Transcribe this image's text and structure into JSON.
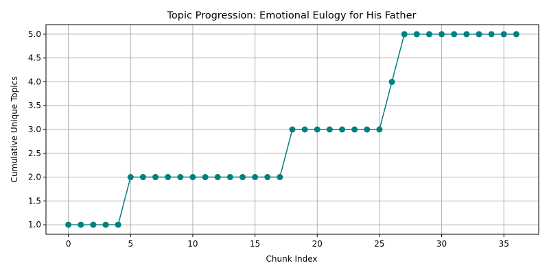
{
  "chart_data": {
    "type": "line",
    "title": "Topic Progression: Emotional Eulogy for His Father",
    "xlabel": "Chunk Index",
    "ylabel": "Cumulative Unique Topics",
    "xlim": [
      -1.8,
      37.8
    ],
    "ylim": [
      0.8,
      5.2
    ],
    "x_ticks": [
      0,
      5,
      10,
      15,
      20,
      25,
      30,
      35
    ],
    "y_ticks": [
      1.0,
      1.5,
      2.0,
      2.5,
      3.0,
      3.5,
      4.0,
      4.5,
      5.0
    ],
    "x_tick_labels": [
      "0",
      "5",
      "10",
      "15",
      "20",
      "25",
      "30",
      "35"
    ],
    "y_tick_labels": [
      "1.0",
      "1.5",
      "2.0",
      "2.5",
      "3.0",
      "3.5",
      "4.0",
      "4.5",
      "5.0"
    ],
    "grid": true,
    "marker": "circle",
    "color": "#008080",
    "series": [
      {
        "x": [
          0,
          1,
          2,
          3,
          4,
          5,
          6,
          7,
          8,
          9,
          10,
          11,
          12,
          13,
          14,
          15,
          16,
          17,
          18,
          19,
          20,
          21,
          22,
          23,
          24,
          25,
          26,
          27,
          28,
          29,
          30,
          31,
          32,
          33,
          34,
          35,
          36
        ],
        "y": [
          1,
          1,
          1,
          1,
          1,
          2,
          2,
          2,
          2,
          2,
          2,
          2,
          2,
          2,
          2,
          2,
          2,
          2,
          3,
          3,
          3,
          3,
          3,
          3,
          3,
          3,
          4,
          5,
          5,
          5,
          5,
          5,
          5,
          5,
          5,
          5,
          5
        ]
      }
    ]
  }
}
